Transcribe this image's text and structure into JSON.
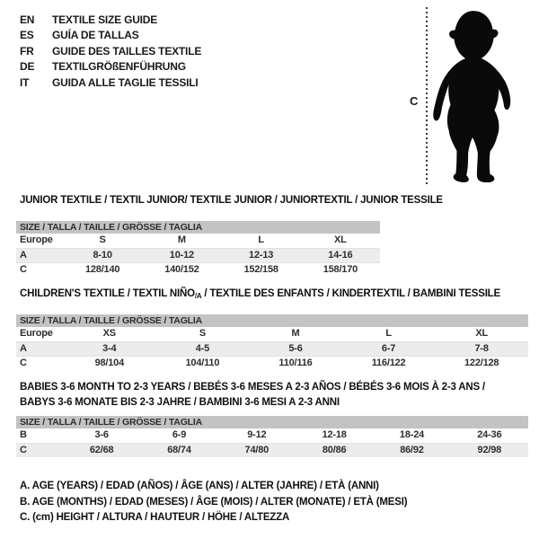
{
  "colors": {
    "header_bar": "#c3c3c3",
    "row_stripe": "#ececec",
    "ink": "#1a1a1a"
  },
  "languages": {
    "items": [
      {
        "code": "EN",
        "label": "TEXTILE SIZE GUIDE"
      },
      {
        "code": "ES",
        "label": "GUÍA DE TALLAS"
      },
      {
        "code": "FR",
        "label": "GUIDE DES TAILLES TEXTILE"
      },
      {
        "code": "DE",
        "label": "TEXTILGRÖßENFÜHRUNG"
      },
      {
        "code": "IT",
        "label": "GUIDA ALLE TAGLIE TESSILI"
      }
    ]
  },
  "figure": {
    "height_label": "C",
    "icon": "baby-silhouette"
  },
  "sections": {
    "junior": {
      "heading": {
        "pre": "JUNIOR TEXTILE / TEXTIL JUNIOR/ TEXTILE JUNIOR / JUNIORTEXTIL / JUNIOR TESSILE",
        "sub": "",
        "post": ""
      },
      "table_header": "SIZE / TALLA / TAILLE / GRÖSSE / TAGLIA",
      "rows": [
        [
          "Europe",
          "S",
          "M",
          "L",
          "XL"
        ],
        [
          "A",
          "8-10",
          "10-12",
          "12-13",
          "14-16"
        ],
        [
          "C",
          "128/140",
          "140/152",
          "152/158",
          "158/170"
        ]
      ]
    },
    "children": {
      "heading": {
        "pre": "CHILDREN'S TEXTILE / TEXTIL NIÑO",
        "sub": "/A",
        "post": " / TEXTILE DES ENFANTS / KINDERTEXTIL / BAMBINI TESSILE"
      },
      "table_header": "SIZE / TALLA / TAILLE / GRÖSSE / TAGLIA",
      "rows": [
        [
          "Europe",
          "XS",
          "S",
          "M",
          "L",
          "XL"
        ],
        [
          "A",
          "3-4",
          "4-5",
          "5-6",
          "6-7",
          "7-8"
        ],
        [
          "C",
          "98/104",
          "104/110",
          "110/116",
          "116/122",
          "122/128"
        ]
      ]
    },
    "babies": {
      "heading_lines": [
        "BABIES 3-6 MONTH TO 2-3 YEARS / BEBÉS 3-6 MESES A 2-3 AÑOS / BÉBÉS 3-6 MOIS À 2-3 ANS /",
        "BABYS 3-6 MONATE BIS 2-3 JAHRE / BAMBINI 3-6 MESI A 2-3 ANNI"
      ],
      "table_header": "SIZE / TALLA / TAILLE / GRÖSSE / TAGLIA",
      "rows": [
        [
          "B",
          "3-6",
          "6-9",
          "9-12",
          "12-18",
          "18-24",
          "24-36"
        ],
        [
          "C",
          "62/68",
          "68/74",
          "74/80",
          "80/86",
          "86/92",
          "92/98"
        ]
      ]
    }
  },
  "footnotes": [
    "A. AGE (YEARS) / EDAD (AÑOS) / ÂGE (ANS) / ALTER (JAHRE) / ETÀ (ANNI)",
    "B. AGE (MONTHS) / EDAD (MESES) / ÂGE (MOIS) / ALTER (MONATE) / ETÀ (MESI)",
    "C. (cm) HEIGHT / ALTURA / HAUTEUR / HÖHE / ALTEZZA"
  ]
}
